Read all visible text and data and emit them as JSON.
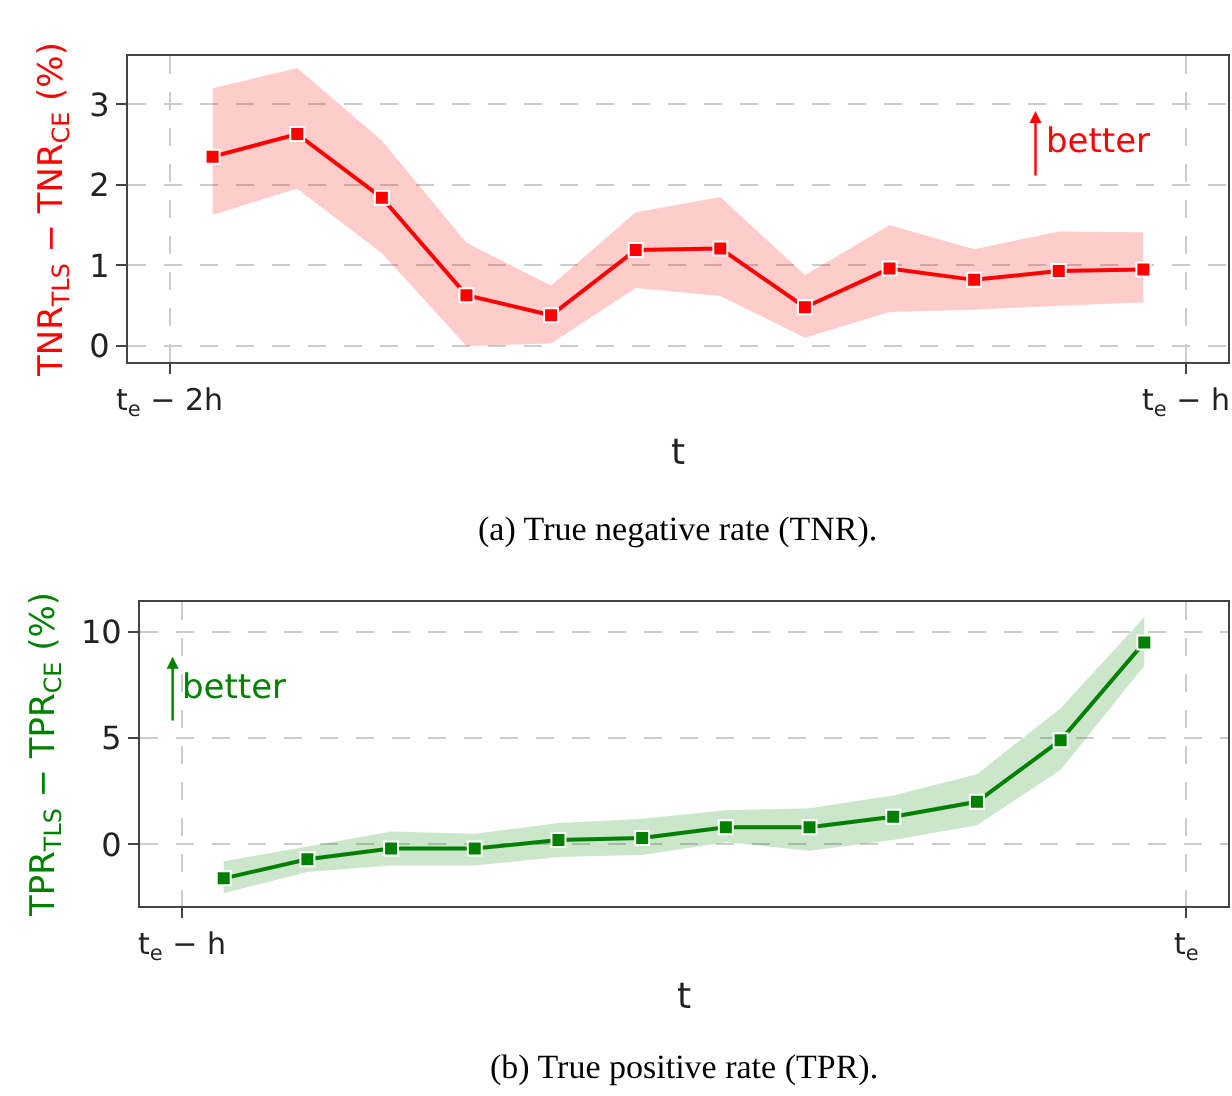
{
  "chart_data": [
    {
      "type": "line",
      "xlabel": "t",
      "ylabel": "TNR$_{TLS}$ − TNR$_{CE}$ (%)",
      "categories": [
        null,
        null,
        null,
        null,
        null,
        null,
        null,
        null,
        null,
        null,
        null,
        null
      ],
      "series": [
        {
          "color": "#ff0000",
          "values": [
            2.35,
            2.63,
            1.84,
            0.63,
            0.38,
            1.19,
            1.21,
            0.48,
            0.96,
            0.82,
            0.93,
            0.95
          ],
          "upper": [
            3.2,
            3.45,
            2.55,
            1.28,
            0.75,
            1.66,
            1.85,
            0.88,
            1.5,
            1.2,
            1.42,
            1.41
          ],
          "lower": [
            1.63,
            1.95,
            1.15,
            0.0,
            0.03,
            0.72,
            0.62,
            0.1,
            0.42,
            0.45,
            0.5,
            0.54
          ]
        }
      ],
      "ylim": [
        -0.2,
        3.6
      ],
      "yticks": [
        0,
        1,
        2,
        3
      ],
      "grid": true,
      "marker": "square",
      "line_style": "solid",
      "annotations": [
        "better",
        "t$_{e}$ − 2h",
        "t$_{e}$ − h",
        "(a) True negative rate (TNR)."
      ]
    },
    {
      "type": "line",
      "xlabel": "t",
      "ylabel": "TPR$_{TLS}$ − TPR$_{CE}$ (%)",
      "categories": [
        null,
        null,
        null,
        null,
        null,
        null,
        null,
        null,
        null,
        null,
        null,
        null
      ],
      "series": [
        {
          "color": "#008000",
          "values": [
            -1.6,
            -0.7,
            -0.2,
            -0.2,
            0.2,
            0.3,
            0.8,
            0.8,
            1.3,
            2.0,
            4.9,
            9.5
          ],
          "upper": [
            -0.8,
            -0.1,
            0.6,
            0.5,
            1.0,
            1.2,
            1.6,
            1.7,
            2.3,
            3.3,
            6.4,
            10.7
          ],
          "lower": [
            -2.3,
            -1.3,
            -1.0,
            -1.0,
            -0.6,
            -0.5,
            0.1,
            -0.3,
            0.2,
            0.9,
            3.5,
            8.4
          ]
        }
      ],
      "ylim": [
        -2.9,
        11.4
      ],
      "yticks": [
        0,
        5,
        10
      ],
      "grid": true,
      "marker": "square",
      "line_style": "solid",
      "annotations": [
        "better",
        "t$_{e}$ − h",
        "t$_{e}$",
        "(b) True positive rate (TPR)."
      ]
    }
  ]
}
